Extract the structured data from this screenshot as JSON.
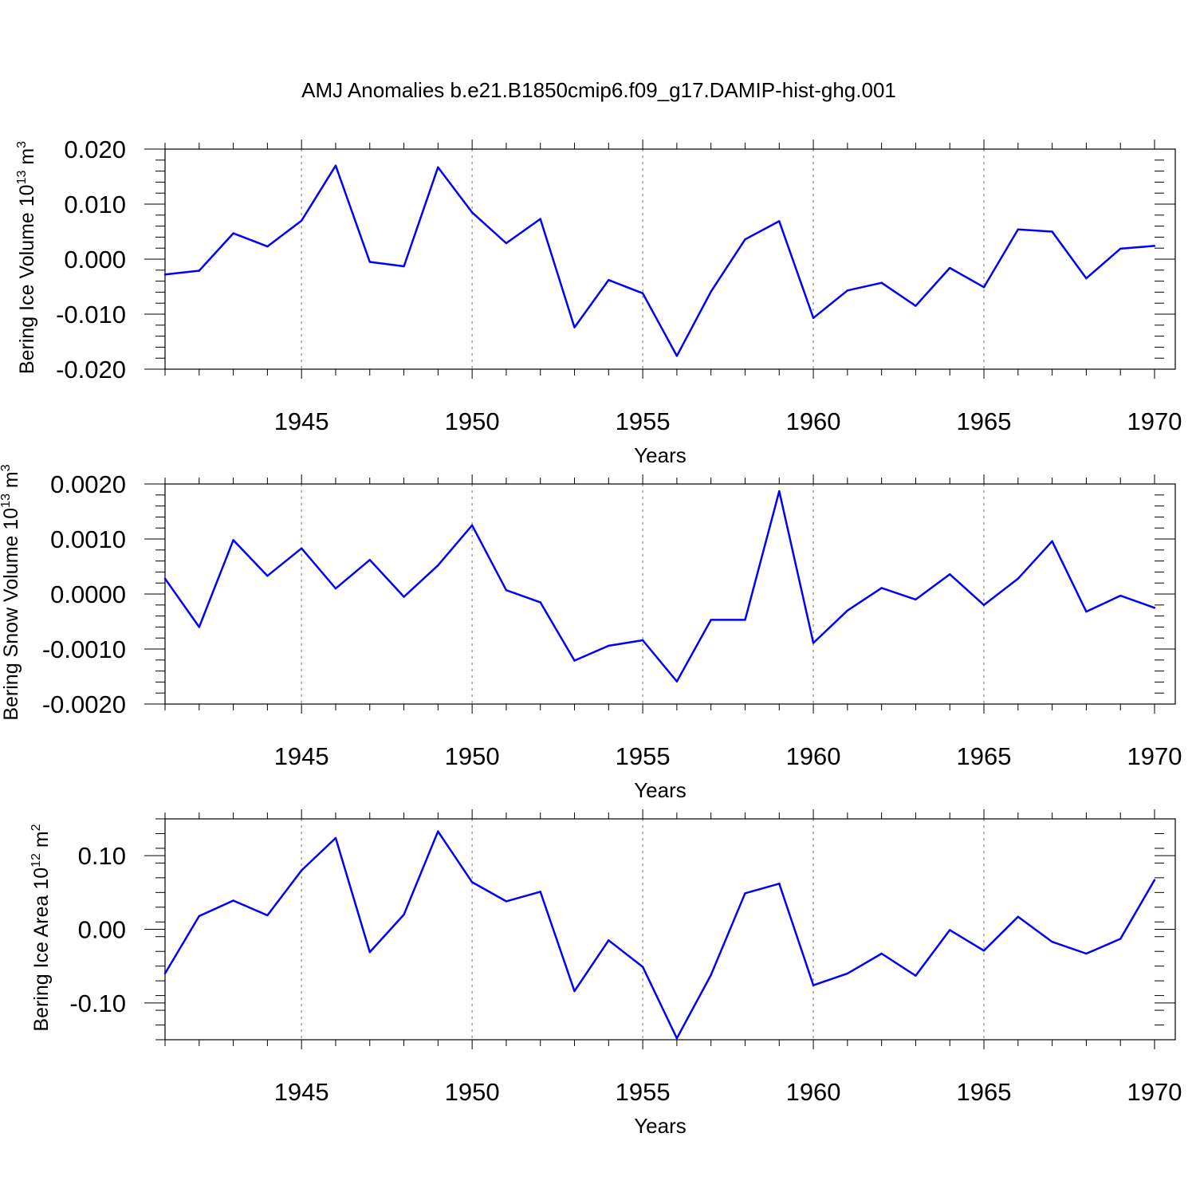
{
  "chart_data": [
    {
      "type": "line",
      "title": "AMJ Anomalies b.e21.B1850cmip6.f09_g17.DAMIP-hist-ghg.001",
      "xlabel": "Years",
      "ylabel": "Bering Ice Volume 10",
      "ylabel_sup": "13",
      "ylabel_unit": " m",
      "ylabel_unit_sup": "3",
      "xlim": [
        1941,
        1970
      ],
      "ylim": [
        -0.02,
        0.02
      ],
      "x_ticks": [
        1945,
        1950,
        1955,
        1960,
        1965,
        1970
      ],
      "y_ticks": [
        "0.020",
        "0.010",
        "0.000",
        "-0.010",
        "-0.020"
      ],
      "y_tick_values": [
        0.02,
        0.01,
        0.0,
        -0.01,
        -0.02
      ],
      "y_minor_step": 0.002,
      "series": [
        {
          "name": "Bering Ice Volume",
          "color": "#0000ff",
          "x": [
            1941,
            1942,
            1943,
            1944,
            1945,
            1946,
            1947,
            1948,
            1949,
            1950,
            1951,
            1952,
            1953,
            1954,
            1955,
            1956,
            1957,
            1958,
            1959,
            1960,
            1961,
            1962,
            1963,
            1964,
            1965,
            1966,
            1967,
            1968,
            1969,
            1970
          ],
          "values": [
            -0.0028,
            -0.0021,
            0.0047,
            0.0023,
            0.007,
            0.017,
            -0.0005,
            -0.0013,
            0.0167,
            0.0085,
            0.0029,
            0.0073,
            -0.0124,
            -0.0038,
            -0.0062,
            -0.0176,
            -0.0059,
            0.0036,
            0.0069,
            -0.0107,
            -0.0057,
            -0.0043,
            -0.0085,
            -0.0016,
            -0.0051,
            0.0054,
            0.005,
            -0.0035,
            0.0019,
            0.0024
          ]
        }
      ]
    },
    {
      "type": "line",
      "xlabel": "Years",
      "ylabel": "Bering Snow Volume 10",
      "ylabel_sup": "13",
      "ylabel_unit": " m",
      "ylabel_unit_sup": "3",
      "xlim": [
        1941,
        1970
      ],
      "ylim": [
        -0.002,
        0.002
      ],
      "x_ticks": [
        1945,
        1950,
        1955,
        1960,
        1965,
        1970
      ],
      "y_ticks": [
        "0.0020",
        "0.0010",
        "0.0000",
        "-0.0010",
        "-0.0020"
      ],
      "y_tick_values": [
        0.002,
        0.001,
        0.0,
        -0.001,
        -0.002
      ],
      "y_minor_step": 0.0002,
      "series": [
        {
          "name": "Bering Snow Volume",
          "color": "#0000ff",
          "x": [
            1941,
            1942,
            1943,
            1944,
            1945,
            1946,
            1947,
            1948,
            1949,
            1950,
            1951,
            1952,
            1953,
            1954,
            1955,
            1956,
            1957,
            1958,
            1959,
            1960,
            1961,
            1962,
            1963,
            1964,
            1965,
            1966,
            1967,
            1968,
            1969,
            1970
          ],
          "values": [
            0.00028,
            -0.0006,
            0.00098,
            0.00033,
            0.00083,
            0.0001,
            0.00062,
            -5e-05,
            0.00052,
            0.00125,
            7e-05,
            -0.00015,
            -0.00121,
            -0.00094,
            -0.00084,
            -0.00159,
            -0.00047,
            -0.00047,
            0.00187,
            -0.00089,
            -0.0003,
            0.00011,
            -0.0001,
            0.00036,
            -0.0002,
            0.00028,
            0.00096,
            -0.00032,
            -3e-05,
            -0.00025
          ]
        }
      ]
    },
    {
      "type": "line",
      "xlabel": "Years",
      "ylabel": "Bering Ice Area 10",
      "ylabel_sup": "12",
      "ylabel_unit": " m",
      "ylabel_unit_sup": "2",
      "xlim": [
        1941,
        1970
      ],
      "ylim": [
        -0.15,
        0.15
      ],
      "x_ticks": [
        1945,
        1950,
        1955,
        1960,
        1965,
        1970
      ],
      "y_ticks": [
        "0.10",
        "0.00",
        "-0.10"
      ],
      "y_tick_values": [
        0.1,
        0.0,
        -0.1
      ],
      "y_minor_step": 0.02,
      "series": [
        {
          "name": "Bering Ice Area",
          "color": "#0000ff",
          "x": [
            1941,
            1942,
            1943,
            1944,
            1945,
            1946,
            1947,
            1948,
            1949,
            1950,
            1951,
            1952,
            1953,
            1954,
            1955,
            1956,
            1957,
            1958,
            1959,
            1960,
            1961,
            1962,
            1963,
            1964,
            1965,
            1966,
            1967,
            1968,
            1969,
            1970
          ],
          "values": [
            -0.06,
            0.018,
            0.039,
            0.019,
            0.08,
            0.124,
            -0.031,
            0.02,
            0.133,
            0.064,
            0.038,
            0.051,
            -0.084,
            -0.015,
            -0.051,
            -0.148,
            -0.062,
            0.049,
            0.062,
            -0.076,
            -0.06,
            -0.033,
            -0.063,
            -0.001,
            -0.029,
            0.017,
            -0.017,
            -0.033,
            -0.013,
            0.067
          ]
        }
      ]
    }
  ]
}
